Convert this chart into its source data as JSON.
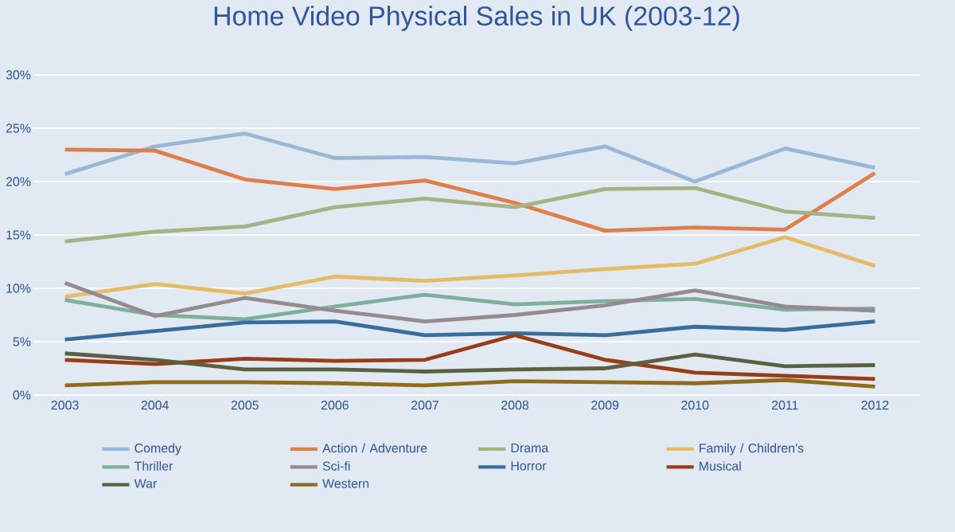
{
  "chart_data": {
    "type": "line",
    "title": "Home Video Physical Sales in UK (2003-12)",
    "categories": [
      "2003",
      "2004",
      "2005",
      "2006",
      "2007",
      "2008",
      "2009",
      "2010",
      "2011",
      "2012"
    ],
    "ylim": [
      0,
      30
    ],
    "yticks": [
      {
        "value": 0,
        "label": "0%"
      },
      {
        "value": 5,
        "label": "5%"
      },
      {
        "value": 10,
        "label": "10%"
      },
      {
        "value": 15,
        "label": "15%"
      },
      {
        "value": 20,
        "label": "20%"
      },
      {
        "value": 25,
        "label": "25%"
      },
      {
        "value": 30,
        "label": "30%"
      }
    ],
    "grid": "y",
    "legend": "bottom",
    "marker": "none",
    "line_style": "solid",
    "series": [
      {
        "name": "Comedy",
        "color": "#9ab8d6",
        "values": [
          20.7,
          23.3,
          24.5,
          22.2,
          22.3,
          21.7,
          23.3,
          20.0,
          23.1,
          21.3
        ]
      },
      {
        "name": "Action / Adventure",
        "color": "#e07f45",
        "values": [
          23.0,
          22.9,
          20.2,
          19.3,
          20.1,
          18.0,
          15.4,
          15.7,
          15.5,
          20.8
        ]
      },
      {
        "name": "Drama",
        "color": "#a6b27f",
        "values": [
          14.4,
          15.3,
          15.8,
          17.6,
          18.4,
          17.6,
          19.3,
          19.4,
          17.2,
          16.6
        ]
      },
      {
        "name": "Family / Children's",
        "color": "#e6bb63",
        "values": [
          9.2,
          10.4,
          9.5,
          11.1,
          10.7,
          11.2,
          11.8,
          12.3,
          14.8,
          12.1
        ]
      },
      {
        "name": "Thriller",
        "color": "#7fae9b",
        "values": [
          8.9,
          7.5,
          7.1,
          8.3,
          9.4,
          8.5,
          8.8,
          9.0,
          8.0,
          8.1
        ]
      },
      {
        "name": "Sci-fi",
        "color": "#958a8f",
        "values": [
          10.5,
          7.4,
          9.1,
          7.9,
          6.9,
          7.5,
          8.4,
          9.8,
          8.3,
          7.9
        ]
      },
      {
        "name": "Horror",
        "color": "#376e9d",
        "values": [
          5.2,
          6.0,
          6.8,
          6.9,
          5.6,
          5.8,
          5.6,
          6.4,
          6.1,
          6.9
        ]
      },
      {
        "name": "Musical",
        "color": "#9a3c16",
        "values": [
          3.3,
          2.9,
          3.4,
          3.2,
          3.3,
          5.6,
          3.3,
          2.1,
          1.8,
          1.5
        ]
      },
      {
        "name": "War",
        "color": "#5b6140",
        "values": [
          3.9,
          3.3,
          2.4,
          2.4,
          2.2,
          2.4,
          2.5,
          3.8,
          2.7,
          2.8
        ]
      },
      {
        "name": "Western",
        "color": "#8f6b1a",
        "values": [
          0.9,
          1.2,
          1.2,
          1.1,
          0.9,
          1.3,
          1.2,
          1.1,
          1.4,
          0.8
        ]
      }
    ]
  }
}
